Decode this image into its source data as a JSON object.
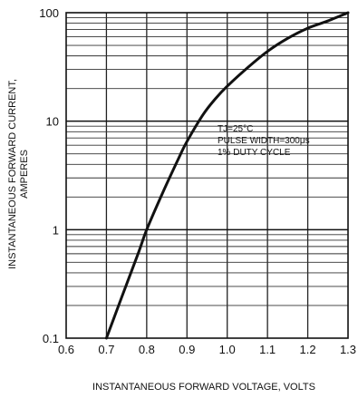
{
  "chart_data": {
    "type": "line",
    "title": "",
    "xlabel": "INSTANTANEOUS FORWARD VOLTAGE, VOLTS",
    "ylabel_line1": "INSTANTANEOUS FORWARD CURRENT,",
    "ylabel_line2": "AMPERES",
    "xlim": [
      0.6,
      1.3
    ],
    "ylim": [
      0.1,
      100
    ],
    "yscale": "log",
    "grid": true,
    "x_ticks": [
      "0.6",
      "0.7",
      "0.8",
      "0.9",
      "1.0",
      "1.1",
      "1.2",
      "1.3"
    ],
    "y_ticks": [
      "0.1",
      "1",
      "10",
      "100"
    ],
    "annotations": [
      "TJ=25°C",
      "PULSE WIDTH=300μs",
      "1% DUTY CYCLE"
    ],
    "series": [
      {
        "x": [
          0.7,
          0.74,
          0.78,
          0.8,
          0.84,
          0.88,
          0.9,
          0.94,
          0.97,
          1.0,
          1.05,
          1.1,
          1.15,
          1.2,
          1.25,
          1.3
        ],
        "y": [
          0.1,
          0.25,
          0.62,
          1.0,
          2.2,
          4.6,
          6.5,
          11.5,
          16,
          21,
          31,
          44,
          58,
          72,
          84,
          100
        ]
      }
    ]
  }
}
